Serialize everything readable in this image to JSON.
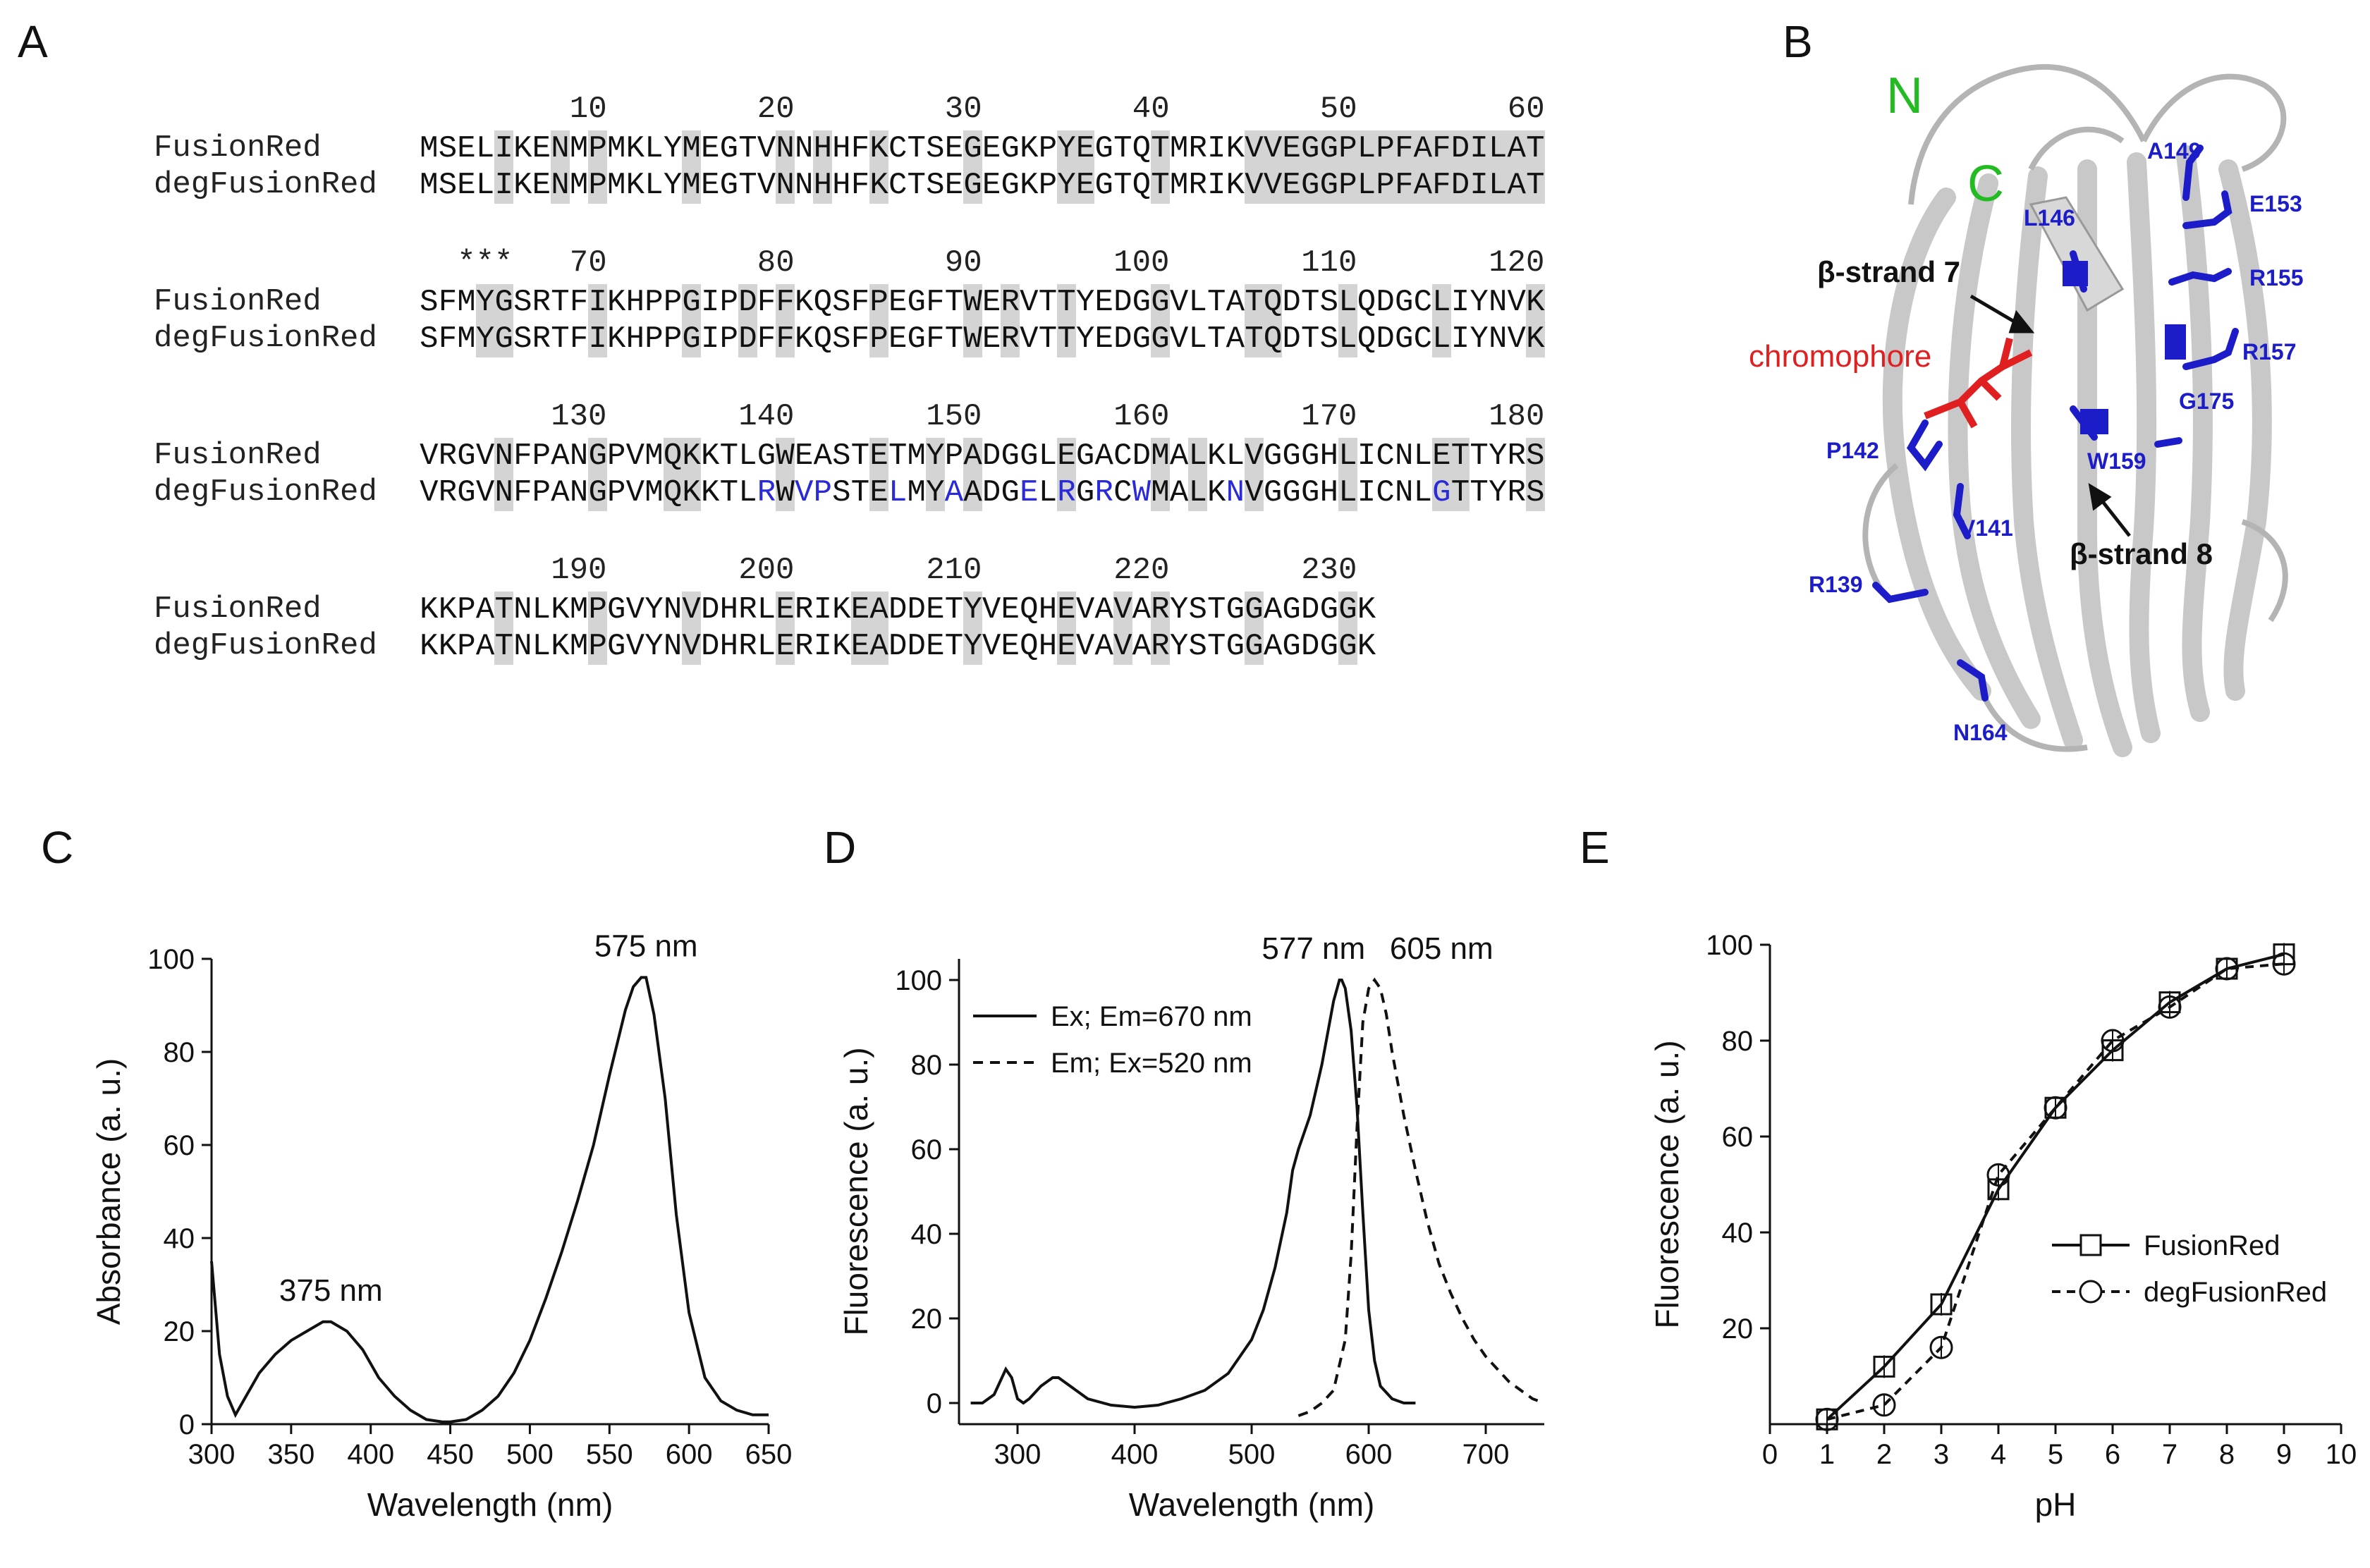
{
  "panels": {
    "a": "A",
    "b": "B",
    "c": "C",
    "d": "D",
    "e": "E"
  },
  "alignment": {
    "names": [
      "FusionRed",
      "degFusionRed"
    ],
    "stars": "***",
    "blocks": [
      {
        "numbers": [
          "10",
          "20",
          "30",
          "40",
          "50",
          "60"
        ],
        "fr": "MSELIKENMPMKLYMEGTVNNHHFKCTSEGEGKPYEGTQTMRIKVVEGGPLPFAFDILAT",
        "deg": "MSELIKENMPMKLYMEGTVNNHHFKCTSEGEGKPYEGTQTMRIKVVEGGPLPFAFDILAT"
      },
      {
        "numbers": [
          "70",
          "80",
          "90",
          "100",
          "110",
          "120"
        ],
        "fr": "SFMYGSRTFIKHPPGIPDFFKQSFPEGFTWERVTTYEDGGVLTATQDTSLQDGCLIYNVK",
        "deg": "SFMYGSRTFIKHPPGIPDFFKQSFPEGFTWERVTTYEDGGVLTATQDTSLQDGCLIYNVK"
      },
      {
        "numbers": [
          "130",
          "140",
          "150",
          "160",
          "170",
          "180"
        ],
        "fr": "VRGVNFPANGPVMQKKTLGWEASTETMYPADGGLEGACDMALKLVGGGHLICNLETTYRS",
        "deg": "VRGVNFPANGPVMQKKTLRWVPSTELMYAADGELRGRCWMALKNVGGGHLICNLGTTYRS"
      },
      {
        "numbers": [
          "190",
          "200",
          "210",
          "220",
          "230"
        ],
        "fr": "KKPATNLKMPGVYNVDHRLERIKEADDETYVEQHEVAVARYSTGGAGDGGK",
        "deg": "KKPATNLKMPGVYNVDHRLERIKEADDETYVEQHEVAVARYSTGGAGDGGK"
      }
    ]
  },
  "structure": {
    "n_label": "N",
    "c_label": "C",
    "strand7": "β-strand 7",
    "strand8": "β-strand 8",
    "chromophore": "chromophore",
    "residues": [
      "A149",
      "E153",
      "L146",
      "R155",
      "R157",
      "G175",
      "P142",
      "W159",
      "V141",
      "R139",
      "N164"
    ],
    "colors": {
      "ribbon": "#c8c8c8",
      "residue": "#1c1cc8",
      "chromophore": "#e02020",
      "terminus": "#22bb22"
    }
  },
  "chart_data": [
    {
      "panel": "C",
      "type": "line",
      "title": "",
      "xlabel": "Wavelength (nm)",
      "ylabel": "Absorbance (a. u.)",
      "xlim": [
        300,
        650
      ],
      "ylim": [
        0,
        100
      ],
      "xticks": [
        "300",
        "350",
        "400",
        "450",
        "500",
        "550",
        "600",
        "650"
      ],
      "yticks": [
        "0",
        "20",
        "40",
        "60",
        "80",
        "100"
      ],
      "annotations": [
        {
          "text": "375 nm",
          "x": 375,
          "y": 22
        },
        {
          "text": "575 nm",
          "x": 573,
          "y": 96
        }
      ],
      "series": [
        {
          "name": "Absorbance",
          "style": "solid",
          "x": [
            300,
            305,
            310,
            315,
            320,
            330,
            340,
            350,
            360,
            370,
            375,
            385,
            395,
            405,
            415,
            425,
            435,
            445,
            450,
            460,
            470,
            480,
            490,
            500,
            510,
            520,
            530,
            540,
            550,
            555,
            560,
            565,
            570,
            573,
            578,
            585,
            592,
            600,
            610,
            620,
            630,
            640,
            650
          ],
          "y": [
            35,
            15,
            6,
            2,
            5,
            11,
            15,
            18,
            20,
            22,
            22,
            20,
            16,
            10,
            6,
            3,
            1,
            0.5,
            0.5,
            1,
            3,
            6,
            11,
            18,
            27,
            37,
            48,
            60,
            75,
            82,
            89,
            94,
            96,
            96,
            88,
            70,
            45,
            24,
            10,
            5,
            3,
            2,
            2
          ]
        }
      ]
    },
    {
      "panel": "D",
      "type": "line",
      "title": "",
      "xlabel": "Wavelength (nm)",
      "ylabel": "Fluorescence (a. u.)",
      "xlim": [
        250,
        750
      ],
      "ylim": [
        -5,
        105
      ],
      "xticks": [
        "300",
        "400",
        "500",
        "600",
        "700"
      ],
      "yticks": [
        "0",
        "20",
        "40",
        "60",
        "80",
        "100"
      ],
      "annotations": [
        {
          "text": "577 nm",
          "x": 577,
          "y": 100
        },
        {
          "text": "605 nm",
          "x": 605,
          "y": 100
        }
      ],
      "legend": [
        "Ex; Em=670 nm",
        "Em; Ex=520 nm"
      ],
      "series": [
        {
          "name": "Ex; Em=670 nm",
          "style": "solid",
          "x": [
            260,
            270,
            280,
            285,
            290,
            295,
            300,
            305,
            310,
            320,
            330,
            335,
            340,
            350,
            360,
            380,
            400,
            420,
            440,
            460,
            480,
            500,
            510,
            520,
            530,
            535,
            540,
            550,
            560,
            570,
            575,
            577,
            580,
            585,
            590,
            595,
            600,
            605,
            610,
            620,
            630,
            640
          ],
          "y": [
            0,
            0,
            2,
            5,
            8,
            6,
            1,
            0,
            1,
            4,
            6,
            6,
            5,
            3,
            1,
            -0.5,
            -1,
            -0.5,
            1,
            3,
            7,
            15,
            22,
            32,
            45,
            55,
            60,
            68,
            80,
            95,
            100,
            100,
            98,
            88,
            70,
            45,
            22,
            10,
            4,
            1,
            0,
            0
          ]
        },
        {
          "name": "Em; Ex=520 nm",
          "style": "dashed",
          "x": [
            540,
            550,
            560,
            570,
            580,
            585,
            590,
            595,
            600,
            605,
            610,
            615,
            620,
            630,
            640,
            650,
            660,
            670,
            680,
            690,
            700,
            710,
            720,
            730,
            740,
            750
          ],
          "y": [
            -3,
            -2,
            0,
            3,
            15,
            35,
            65,
            90,
            98,
            100,
            98,
            92,
            83,
            68,
            55,
            43,
            33,
            26,
            20,
            15,
            11,
            8,
            5,
            3,
            1,
            0
          ]
        }
      ]
    },
    {
      "panel": "E",
      "type": "line",
      "title": "",
      "xlabel": "pH",
      "ylabel": "Fluorescence (a. u.)",
      "xlim": [
        0,
        10
      ],
      "ylim": [
        0,
        100
      ],
      "xticks": [
        "0",
        "1",
        "2",
        "3",
        "4",
        "5",
        "6",
        "7",
        "8",
        "9",
        "10"
      ],
      "yticks": [
        "20",
        "40",
        "60",
        "80",
        "100"
      ],
      "legend": [
        "FusionRed",
        "degFusionRed"
      ],
      "x": [
        1,
        2,
        3,
        4,
        5,
        6,
        7,
        8,
        9
      ],
      "series": [
        {
          "name": "FusionRed",
          "style": "solid",
          "marker": "square",
          "values": [
            1,
            12,
            25,
            49,
            66,
            78,
            88,
            95,
            98
          ]
        },
        {
          "name": "degFusionRed",
          "style": "dashed",
          "marker": "circle",
          "values": [
            1,
            4,
            16,
            52,
            66,
            80,
            87,
            95,
            96
          ]
        }
      ]
    }
  ]
}
